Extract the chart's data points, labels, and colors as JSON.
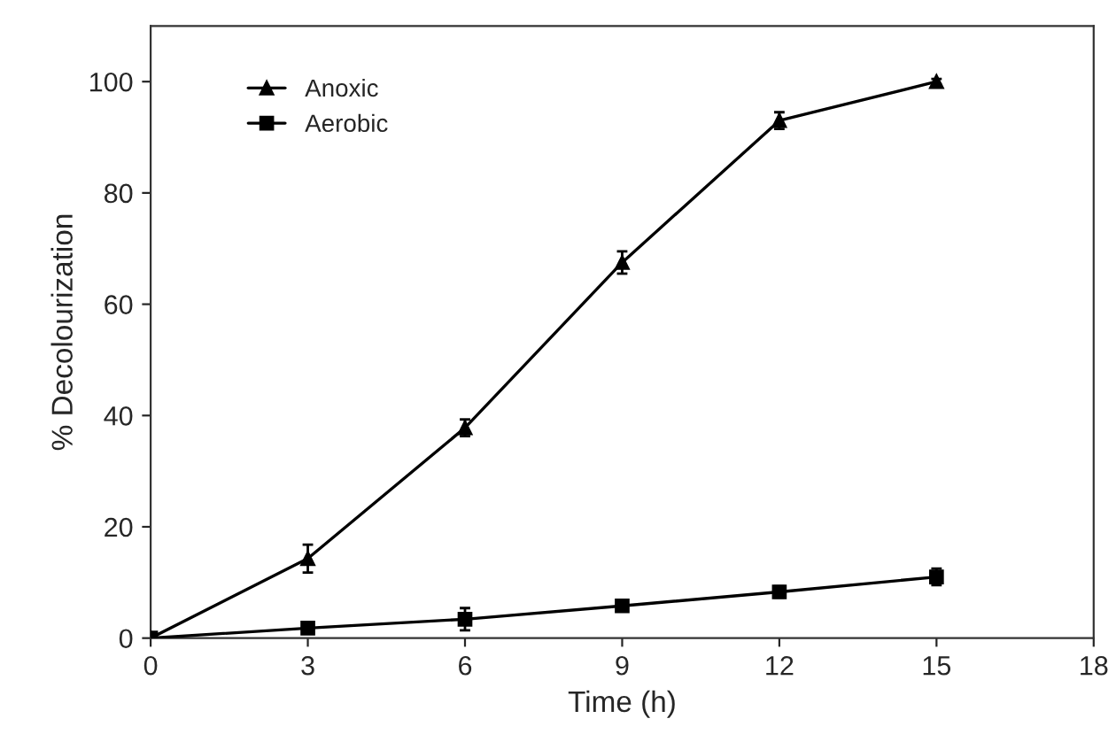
{
  "chart_data": {
    "type": "line",
    "xlabel": "Time (h)",
    "ylabel": "% Decolourization",
    "x": [
      0,
      3,
      6,
      9,
      12,
      15
    ],
    "series": [
      {
        "name": "Anoxic",
        "color": "#000000",
        "marker": "triangle",
        "values": [
          0,
          14.3,
          37.8,
          67.5,
          93,
          100
        ],
        "errors": [
          null,
          2.5,
          1.5,
          2,
          1.5,
          0.5
        ]
      },
      {
        "name": "Aerobic",
        "color": "#000000",
        "marker": "square",
        "values": [
          0,
          1.8,
          3.4,
          5.8,
          8.3,
          11
        ],
        "errors": [
          null,
          0.5,
          2,
          0.5,
          1,
          1.5
        ]
      }
    ],
    "xlim": [
      0,
      18
    ],
    "xticks": [
      0,
      3,
      6,
      9,
      12,
      15,
      18
    ],
    "ylim": [
      0,
      110
    ],
    "yticks": [
      0,
      20,
      40,
      60,
      80,
      100
    ],
    "grid": false,
    "legend": "top left",
    "line_style": "solid"
  }
}
